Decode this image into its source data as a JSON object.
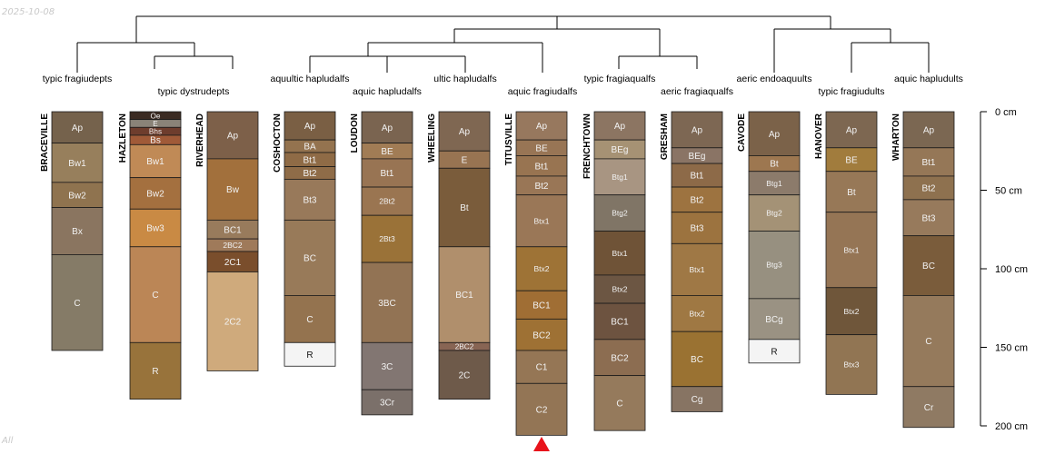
{
  "chart_data": {
    "type": "soil-profile-dendrogram",
    "date_label": "2025-10-08",
    "corner_label": "All",
    "depth_axis": {
      "min": 0,
      "max": 200,
      "unit": "cm",
      "ticks": [
        {
          "value": 0,
          "label": "0 cm"
        },
        {
          "value": 50,
          "label": "50 cm"
        },
        {
          "value": 100,
          "label": "100 cm"
        },
        {
          "value": 150,
          "label": "150 cm"
        },
        {
          "value": 200,
          "label": "200 cm"
        }
      ]
    },
    "taxa_labels": [
      "typic fragiudepts",
      "typic dystrudepts",
      "aquultic hapludalfs",
      "aquic hapludalfs",
      "ultic hapludalfs",
      "aquic fragiudalfs",
      "typic fragiaqualfs",
      "aeric fragiaqualfs",
      "aeric endoaquults",
      "typic fragiudults",
      "aquic hapludults"
    ],
    "marker": {
      "profile": "TITUSVILLE",
      "color": "#e8131b"
    },
    "profiles": [
      {
        "name": "BRACEVILLE",
        "horizons": [
          {
            "name": "Ap",
            "top": 0,
            "bottom": 20,
            "color": "#75624c"
          },
          {
            "name": "Bw1",
            "top": 20,
            "bottom": 45,
            "color": "#977f5c"
          },
          {
            "name": "Bw2",
            "top": 45,
            "bottom": 61,
            "color": "#8f734f"
          },
          {
            "name": "Bx",
            "top": 61,
            "bottom": 91,
            "color": "#8a7560"
          },
          {
            "name": "C",
            "top": 91,
            "bottom": 152,
            "color": "#857b67"
          }
        ]
      },
      {
        "name": "HAZLETON",
        "horizons": [
          {
            "name": "Oe",
            "top": 0,
            "bottom": 5,
            "color": "#3b2b22"
          },
          {
            "name": "E",
            "top": 5,
            "bottom": 10,
            "color": "#8a8378"
          },
          {
            "name": "Bhs",
            "top": 10,
            "bottom": 15,
            "color": "#6e3d2d"
          },
          {
            "name": "Bs",
            "top": 15,
            "bottom": 21,
            "color": "#a05a38"
          },
          {
            "name": "Bw1",
            "top": 21,
            "bottom": 42,
            "color": "#c08a56"
          },
          {
            "name": "Bw2",
            "top": 42,
            "bottom": 62,
            "color": "#a4703f"
          },
          {
            "name": "Bw3",
            "top": 62,
            "bottom": 86,
            "color": "#c98a44"
          },
          {
            "name": "C",
            "top": 86,
            "bottom": 147,
            "color": "#bb8656"
          },
          {
            "name": "R",
            "top": 147,
            "bottom": 183,
            "color": "#98733b"
          }
        ]
      },
      {
        "name": "RIVERHEAD",
        "horizons": [
          {
            "name": "Ap",
            "top": 0,
            "bottom": 30,
            "color": "#7d6049"
          },
          {
            "name": "Bw",
            "top": 30,
            "bottom": 69,
            "color": "#a2703c"
          },
          {
            "name": "BC1",
            "top": 69,
            "bottom": 81,
            "color": "#987b5c"
          },
          {
            "name": "2BC2",
            "top": 81,
            "bottom": 89,
            "color": "#9f7a5a"
          },
          {
            "name": "2C1",
            "top": 89,
            "bottom": 102,
            "color": "#7a4e2c"
          },
          {
            "name": "2C2",
            "top": 102,
            "bottom": 165,
            "color": "#cfaa7c"
          }
        ]
      },
      {
        "name": "COSHOCTON",
        "horizons": [
          {
            "name": "Ap",
            "top": 0,
            "bottom": 18,
            "color": "#7a5f44"
          },
          {
            "name": "BA",
            "top": 18,
            "bottom": 26,
            "color": "#94734f"
          },
          {
            "name": "Bt1",
            "top": 26,
            "bottom": 35,
            "color": "#8f6b46"
          },
          {
            "name": "Bt2",
            "top": 35,
            "bottom": 43,
            "color": "#8f6c48"
          },
          {
            "name": "Bt3",
            "top": 43,
            "bottom": 69,
            "color": "#98795a"
          },
          {
            "name": "BC",
            "top": 69,
            "bottom": 117,
            "color": "#987a59"
          },
          {
            "name": "C",
            "top": 117,
            "bottom": 147,
            "color": "#94734f"
          },
          {
            "name": "R",
            "top": 147,
            "bottom": 162,
            "color": "#f4f4f4"
          }
        ]
      },
      {
        "name": "LOUDON",
        "horizons": [
          {
            "name": "Ap",
            "top": 0,
            "bottom": 20,
            "color": "#7a6450"
          },
          {
            "name": "BE",
            "top": 20,
            "bottom": 30,
            "color": "#a17c55"
          },
          {
            "name": "Bt1",
            "top": 30,
            "bottom": 48,
            "color": "#987453"
          },
          {
            "name": "2Bt2",
            "top": 48,
            "bottom": 66,
            "color": "#9a7551"
          },
          {
            "name": "2Bt3",
            "top": 66,
            "bottom": 96,
            "color": "#9a7238"
          },
          {
            "name": "3BC",
            "top": 96,
            "bottom": 147,
            "color": "#927354"
          },
          {
            "name": "3C",
            "top": 147,
            "bottom": 177,
            "color": "#827672"
          },
          {
            "name": "3Cr",
            "top": 177,
            "bottom": 193,
            "color": "#7b706a"
          }
        ]
      },
      {
        "name": "WHEELING",
        "horizons": [
          {
            "name": "Ap",
            "top": 0,
            "bottom": 25,
            "color": "#7f6752"
          },
          {
            "name": "E",
            "top": 25,
            "bottom": 36,
            "color": "#987452"
          },
          {
            "name": "Bt",
            "top": 36,
            "bottom": 86,
            "color": "#7a5c3b"
          },
          {
            "name": "BC1",
            "top": 86,
            "bottom": 147,
            "color": "#b08f6c"
          },
          {
            "name": "2BC2",
            "top": 147,
            "bottom": 152,
            "color": "#886554"
          },
          {
            "name": "2C",
            "top": 152,
            "bottom": 183,
            "color": "#6e5a4a"
          }
        ]
      },
      {
        "name": "TITUSVILLE",
        "horizons": [
          {
            "name": "Ap",
            "top": 0,
            "bottom": 18,
            "color": "#97785e"
          },
          {
            "name": "BE",
            "top": 18,
            "bottom": 28,
            "color": "#987555"
          },
          {
            "name": "Bt1",
            "top": 28,
            "bottom": 41,
            "color": "#987451"
          },
          {
            "name": "Bt2",
            "top": 41,
            "bottom": 53,
            "color": "#997656"
          },
          {
            "name": "Btx1",
            "top": 53,
            "bottom": 86,
            "color": "#9a7757"
          },
          {
            "name": "Btx2",
            "top": 86,
            "bottom": 114,
            "color": "#9e7336"
          },
          {
            "name": "BC1",
            "top": 114,
            "bottom": 132,
            "color": "#a06e34"
          },
          {
            "name": "BC2",
            "top": 132,
            "bottom": 152,
            "color": "#9e7134"
          },
          {
            "name": "C1",
            "top": 152,
            "bottom": 173,
            "color": "#957655"
          },
          {
            "name": "C2",
            "top": 173,
            "bottom": 206,
            "color": "#937555"
          }
        ]
      },
      {
        "name": "FRENCHTOWN",
        "horizons": [
          {
            "name": "Ap",
            "top": 0,
            "bottom": 18,
            "color": "#8c7562"
          },
          {
            "name": "BEg",
            "top": 18,
            "bottom": 30,
            "color": "#a69274"
          },
          {
            "name": "Btg1",
            "top": 30,
            "bottom": 53,
            "color": "#a89582"
          },
          {
            "name": "Btg2",
            "top": 53,
            "bottom": 76,
            "color": "#807566"
          },
          {
            "name": "Btx1",
            "top": 76,
            "bottom": 104,
            "color": "#6f5337"
          },
          {
            "name": "Btx2",
            "top": 104,
            "bottom": 122,
            "color": "#6c5643"
          },
          {
            "name": "BC1",
            "top": 122,
            "bottom": 145,
            "color": "#6d5340"
          },
          {
            "name": "BC2",
            "top": 145,
            "bottom": 168,
            "color": "#8c6d51"
          },
          {
            "name": "C",
            "top": 168,
            "bottom": 203,
            "color": "#957a5c"
          }
        ]
      },
      {
        "name": "GRESHAM",
        "horizons": [
          {
            "name": "Ap",
            "top": 0,
            "bottom": 23,
            "color": "#7d6753"
          },
          {
            "name": "BEg",
            "top": 23,
            "bottom": 33,
            "color": "#8a7465"
          },
          {
            "name": "Bt1",
            "top": 33,
            "bottom": 48,
            "color": "#8d6a48"
          },
          {
            "name": "Bt2",
            "top": 48,
            "bottom": 64,
            "color": "#9d7340"
          },
          {
            "name": "Bt3",
            "top": 64,
            "bottom": 84,
            "color": "#9c733f"
          },
          {
            "name": "Btx1",
            "top": 84,
            "bottom": 117,
            "color": "#9f7845"
          },
          {
            "name": "Btx2",
            "top": 117,
            "bottom": 140,
            "color": "#9f7843"
          },
          {
            "name": "BC",
            "top": 140,
            "bottom": 175,
            "color": "#9a7232"
          },
          {
            "name": "Cg",
            "top": 175,
            "bottom": 191,
            "color": "#877463"
          }
        ]
      },
      {
        "name": "CAVODE",
        "horizons": [
          {
            "name": "Ap",
            "top": 0,
            "bottom": 28,
            "color": "#7b6249"
          },
          {
            "name": "Bt",
            "top": 28,
            "bottom": 38,
            "color": "#9d7750"
          },
          {
            "name": "Btg1",
            "top": 38,
            "bottom": 53,
            "color": "#8c7b6b"
          },
          {
            "name": "Btg2",
            "top": 53,
            "bottom": 76,
            "color": "#a49276"
          },
          {
            "name": "Btg3",
            "top": 76,
            "bottom": 119,
            "color": "#979080"
          },
          {
            "name": "BCg",
            "top": 119,
            "bottom": 145,
            "color": "#9a9283"
          },
          {
            "name": "R",
            "top": 145,
            "bottom": 160,
            "color": "#f4f4f4"
          }
        ]
      },
      {
        "name": "HANOVER",
        "horizons": [
          {
            "name": "Ap",
            "top": 0,
            "bottom": 23,
            "color": "#7d6751"
          },
          {
            "name": "BE",
            "top": 23,
            "bottom": 38,
            "color": "#a17c3d"
          },
          {
            "name": "Bt",
            "top": 38,
            "bottom": 64,
            "color": "#977857"
          },
          {
            "name": "Btx1",
            "top": 64,
            "bottom": 112,
            "color": "#957555"
          },
          {
            "name": "Btx2",
            "top": 112,
            "bottom": 142,
            "color": "#6f563a"
          },
          {
            "name": "Btx3",
            "top": 142,
            "bottom": 180,
            "color": "#917553"
          }
        ]
      },
      {
        "name": "WHARTON",
        "horizons": [
          {
            "name": "Ap",
            "top": 0,
            "bottom": 23,
            "color": "#7b6752"
          },
          {
            "name": "Bt1",
            "top": 23,
            "bottom": 41,
            "color": "#957757"
          },
          {
            "name": "Bt2",
            "top": 41,
            "bottom": 56,
            "color": "#8e714f"
          },
          {
            "name": "Bt3",
            "top": 56,
            "bottom": 79,
            "color": "#977a5c"
          },
          {
            "name": "BC",
            "top": 79,
            "bottom": 117,
            "color": "#7a5c3b"
          },
          {
            "name": "C",
            "top": 117,
            "bottom": 175,
            "color": "#957a5c"
          },
          {
            "name": "Cr",
            "top": 175,
            "bottom": 201,
            "color": "#8f7a63"
          }
        ]
      }
    ]
  }
}
